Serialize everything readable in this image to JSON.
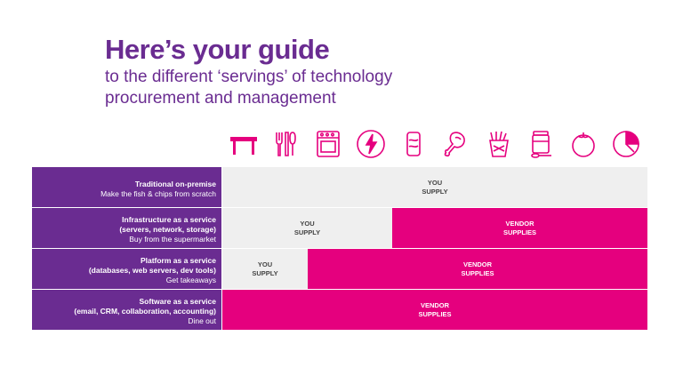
{
  "header": {
    "title": "Here’s your guide",
    "subtitle": "to the different ‘servings’ of technology procurement and management"
  },
  "colors": {
    "brand_purple": "#6a2c91",
    "vendor_magenta": "#e5007e",
    "you_grey": "#efefef"
  },
  "icons": [
    {
      "name": "table-icon"
    },
    {
      "name": "cutlery-icon"
    },
    {
      "name": "oven-icon"
    },
    {
      "name": "power-icon"
    },
    {
      "name": "can-icon"
    },
    {
      "name": "chicken-leg-icon"
    },
    {
      "name": "fries-icon"
    },
    {
      "name": "jar-spoon-icon"
    },
    {
      "name": "tomato-icon"
    },
    {
      "name": "citrus-icon"
    }
  ],
  "rows": [
    {
      "title": "Traditional on-premise",
      "detail": "",
      "analogy": "Make the fish & chips from scratch",
      "you_label": "YOU\nSUPPLY",
      "vendor_label": "",
      "you_share": 1.0
    },
    {
      "title": "Infrastructure as a service",
      "detail": "(servers, network, storage)",
      "analogy": "Buy from the supermarket",
      "you_label": "YOU\nSUPPLY",
      "vendor_label": "VENDOR\nSUPPLIES",
      "you_share": 0.4
    },
    {
      "title": "Platform as a service",
      "detail": "(databases, web servers, dev tools)",
      "analogy": "Get takeaways",
      "you_label": "YOU\nSUPPLY",
      "vendor_label": "VENDOR\nSUPPLIES",
      "you_share": 0.2
    },
    {
      "title": "Software as a service",
      "detail": "(email, CRM, collaboration, accounting)",
      "analogy": "Dine out",
      "you_label": "",
      "vendor_label": "VENDOR\nSUPPLIES",
      "you_share": 0.0
    }
  ]
}
